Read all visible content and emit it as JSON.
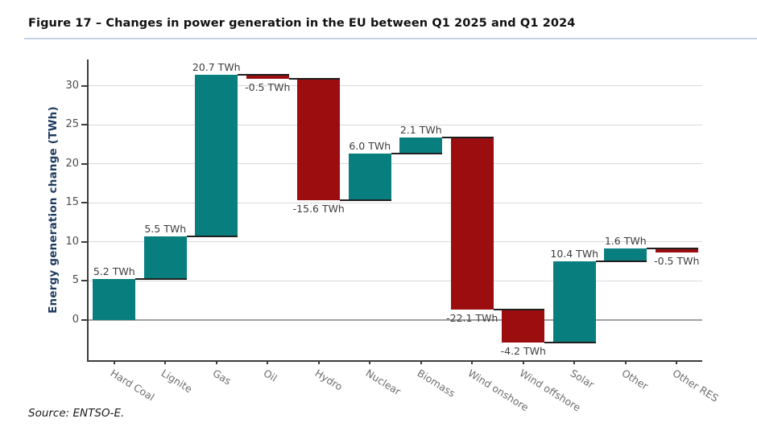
{
  "page": {
    "title": "Figure 17 – Changes in power generation in the EU between Q1 2025 and Q1 2024",
    "source": "Source: ENTSO-E."
  },
  "chart_data": {
    "type": "bar",
    "variant": "waterfall",
    "title": "Figure 17 – Changes in power generation in the EU between Q1 2025 and Q1 2024",
    "categories": [
      "Hard Coal",
      "Lignite",
      "Gas",
      "Oil",
      "Hydro",
      "Nuclear",
      "Biomass",
      "Wind onshore",
      "Wind offshore",
      "Solar",
      "Other",
      "Other RES"
    ],
    "values": [
      5.2,
      5.5,
      20.7,
      -0.5,
      -15.6,
      6.0,
      2.1,
      -22.1,
      -4.2,
      10.4,
      1.6,
      -0.5
    ],
    "bar_labels": [
      "5.2 TWh",
      "5.5 TWh",
      "20.7 TWh",
      "-0.5 TWh",
      "-15.6 TWh",
      "6.0 TWh",
      "2.1 TWh",
      "-22.1 TWh",
      "-4.2 TWh",
      "10.4 TWh",
      "1.6 TWh",
      "-0.5 TWh"
    ],
    "cumulative": [
      5.2,
      10.7,
      31.4,
      30.9,
      15.3,
      21.3,
      23.4,
      1.3,
      -2.9,
      7.5,
      9.1,
      8.6
    ],
    "start_value": 0,
    "unit": "TWh",
    "xlabel": "",
    "ylabel": "Energy generation change (TWh)",
    "yticks": [
      0,
      5,
      10,
      15,
      20,
      25,
      30
    ],
    "ylim": [
      -5.2,
      33.4
    ],
    "grid": "horizontal",
    "legend": "none",
    "colors": {
      "increase": "#087f7e",
      "decrease": "#9c0d10",
      "zero_line": "#a0a0a0",
      "gridline": "#d9d9d9",
      "connector": "#1f1f1f",
      "axis": "#3c3c3c",
      "tick_label": "#4d4d4d",
      "category_label": "#6e6e6e",
      "value_label": "#3d3d3d",
      "ylabel_text": "#1e3a5f",
      "title_text": "#111111",
      "title_underline": "#c3d2e5"
    }
  }
}
